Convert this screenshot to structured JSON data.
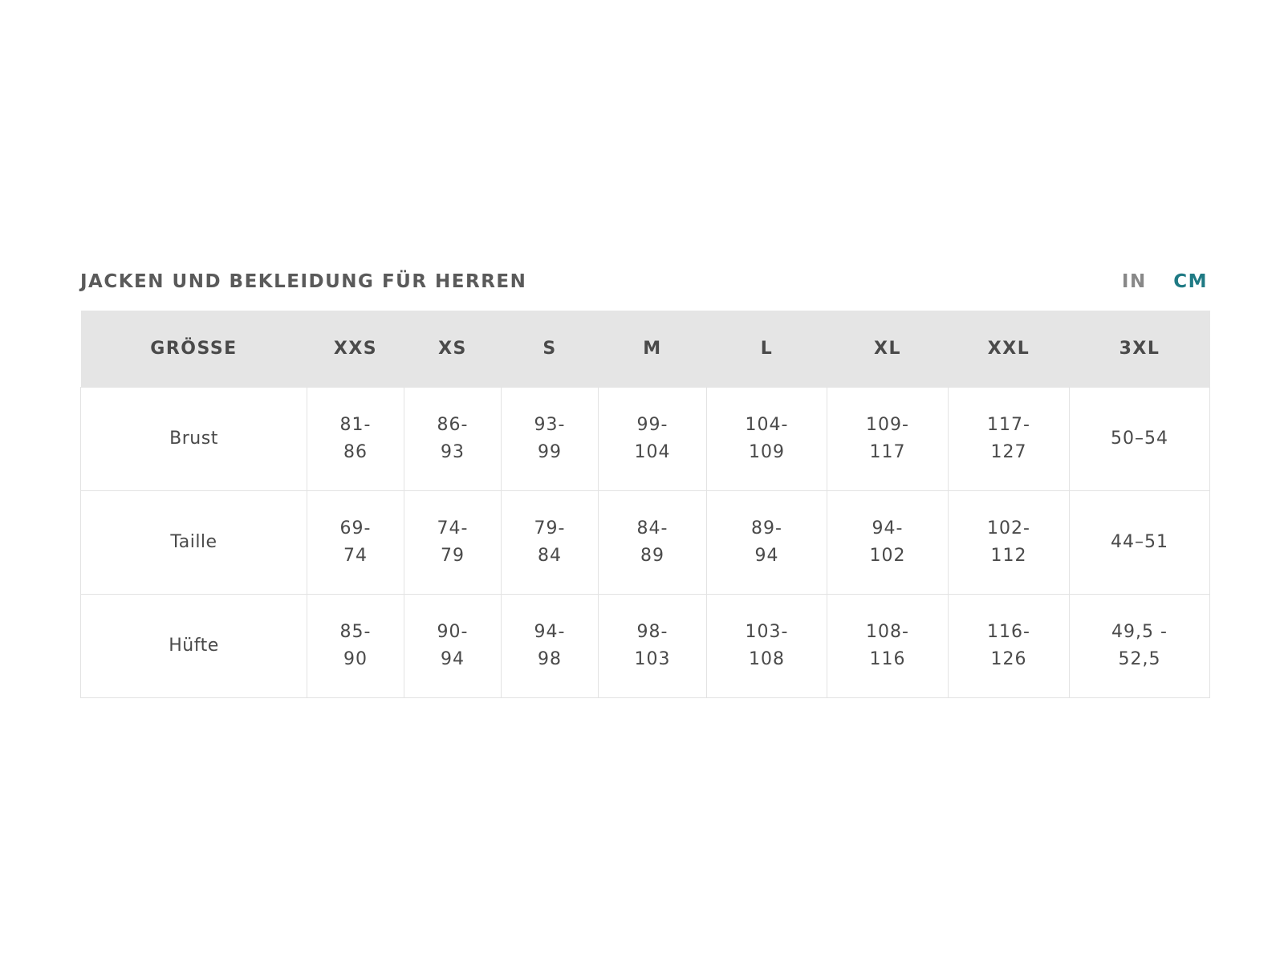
{
  "title": "JACKEN UND BEKLEIDUNG FÜR HERREN",
  "units": {
    "in": "IN",
    "cm": "CM",
    "selected": "CM",
    "accent_color": "#1f7a84"
  },
  "table": {
    "headers": [
      "GRÖSSE",
      "XXS",
      "XS",
      "S",
      "M",
      "L",
      "XL",
      "XXL",
      "3XL"
    ],
    "rows": [
      {
        "label": "Brust",
        "values": [
          "81-86",
          "86-93",
          "93-99",
          "99-104",
          "104-109",
          "109-117",
          "117-127",
          "50–54"
        ]
      },
      {
        "label": "Taille",
        "values": [
          "69-74",
          "74-79",
          "79-84",
          "84-89",
          "89-94",
          "94-102",
          "102-112",
          "44–51"
        ]
      },
      {
        "label": "Hüfte",
        "values": [
          "85-90",
          "90-94",
          "94-98",
          "98-103",
          "103-108",
          "108-116",
          "116-126",
          "49,5 - 52,5"
        ]
      }
    ]
  }
}
